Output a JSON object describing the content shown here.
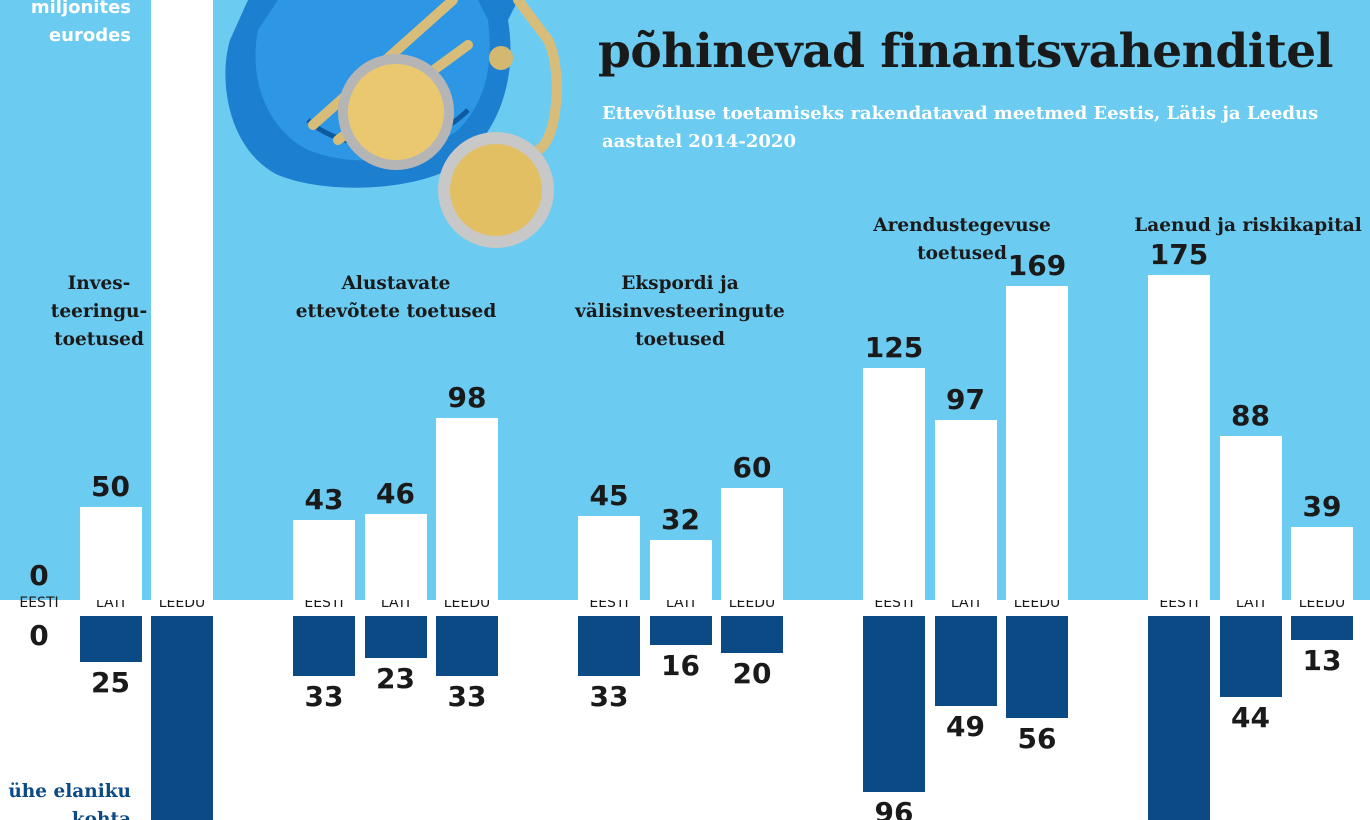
{
  "header": {
    "title": "põhinevad finantsvahenditel",
    "subtitle": "Ettevõtluse toetamiseks rakendatavad meetmed Eestis, Lätis ja Leedus aastatel 2014-2020",
    "unit_label_line1": "miljonites",
    "unit_label_line2": "eurodes",
    "per_capita_line1": "ühe elaniku",
    "per_capita_line2": "kohta"
  },
  "colors": {
    "background_top": "#6ccbf0",
    "bar_total": "#ffffff",
    "bar_per_capita": "#0c4a86",
    "text_dark": "#1a1a1a"
  },
  "chart_data": {
    "type": "bar",
    "countries": [
      "EESTI",
      "LÄTI",
      "LEEDU"
    ],
    "groups": [
      {
        "label_lines": [
          "Inves-",
          "teeringu-",
          "toetused"
        ],
        "total_millions_eur": [
          0,
          50,
          null
        ],
        "per_capita_eur": [
          0,
          25,
          null
        ]
      },
      {
        "label_lines": [
          "Alustavate",
          "ettevõtete toetused"
        ],
        "total_millions_eur": [
          43,
          46,
          98
        ],
        "per_capita_eur": [
          33,
          23,
          33
        ]
      },
      {
        "label_lines": [
          "Ekspordi ja",
          "välisinvesteeringute",
          "toetused"
        ],
        "total_millions_eur": [
          45,
          32,
          60
        ],
        "per_capita_eur": [
          33,
          16,
          20
        ]
      },
      {
        "label_lines": [
          "Arendustegevuse",
          "toetused"
        ],
        "total_millions_eur": [
          125,
          97,
          169
        ],
        "per_capita_eur": [
          96,
          49,
          56
        ]
      },
      {
        "label_lines": [
          "Laenud ja riskikapital"
        ],
        "total_millions_eur": [
          175,
          88,
          39
        ],
        "per_capita_eur": [
          null,
          44,
          13
        ]
      }
    ]
  }
}
